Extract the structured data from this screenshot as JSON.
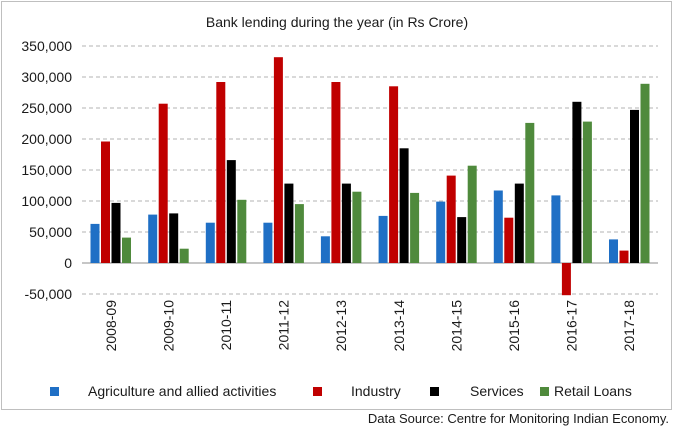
{
  "chart_data": {
    "type": "bar",
    "title": "Bank lending during the year (in Rs Crore)",
    "xlabel": "",
    "ylabel": "",
    "categories": [
      "2008-09",
      "2009-10",
      "2010-11",
      "2011-12",
      "2012-13",
      "2013-14",
      "2014-15",
      "2015-16",
      "2016-17",
      "2017-18"
    ],
    "ylim": [
      -50000,
      350000
    ],
    "yticks": [
      -50000,
      0,
      50000,
      100000,
      150000,
      200000,
      250000,
      300000,
      350000
    ],
    "ytick_labels": [
      "-50,000",
      "0",
      "50,000",
      "100,000",
      "150,000",
      "200,000",
      "250,000",
      "300,000",
      "350,000"
    ],
    "grid": true,
    "legend_position": "bottom",
    "series": [
      {
        "name": "Agriculture and allied activities",
        "color": "#1f6fc5",
        "values": [
          63000,
          78000,
          65000,
          65000,
          43000,
          76000,
          99000,
          117000,
          109000,
          38000
        ]
      },
      {
        "name": "Industry",
        "color": "#c00000",
        "values": [
          196000,
          257000,
          292000,
          332000,
          292000,
          285000,
          141000,
          73000,
          -52000,
          20000
        ]
      },
      {
        "name": "Services",
        "color": "#000000",
        "values": [
          97000,
          80000,
          166000,
          128000,
          128000,
          185000,
          74000,
          128000,
          260000,
          247000
        ]
      },
      {
        "name": "Retail Loans",
        "color": "#4f8a3c",
        "values": [
          41000,
          23000,
          102000,
          95000,
          115000,
          113000,
          157000,
          226000,
          228000,
          289000
        ]
      }
    ]
  },
  "source_note": "Data Source: Centre for Monitoring Indian Economy."
}
